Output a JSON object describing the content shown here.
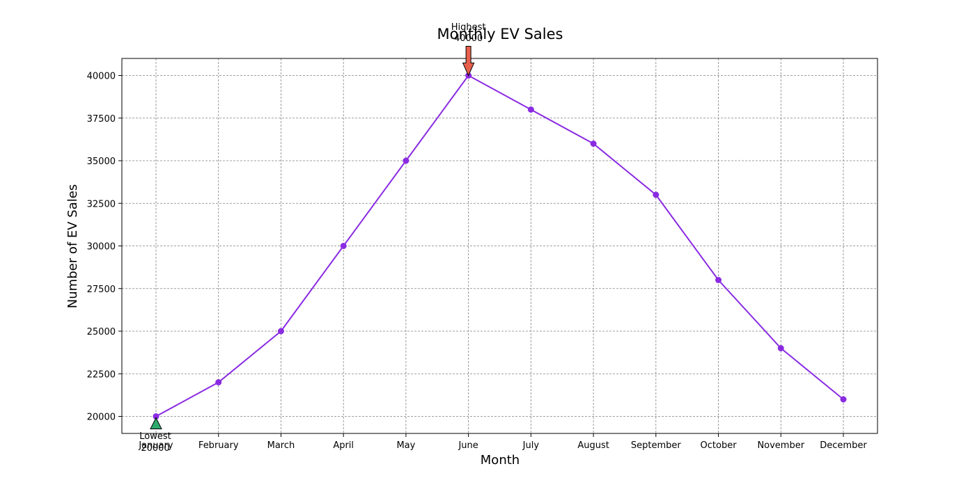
{
  "chart_data": {
    "type": "line",
    "title": "Monthly EV Sales",
    "xlabel": "Month",
    "ylabel": "Number of EV Sales",
    "categories": [
      "January",
      "February",
      "March",
      "April",
      "May",
      "June",
      "July",
      "August",
      "September",
      "October",
      "November",
      "December"
    ],
    "series": [
      {
        "values": [
          20000,
          22000,
          25000,
          30000,
          35000,
          40000,
          38000,
          36000,
          33000,
          28000,
          24000,
          21000
        ]
      }
    ],
    "ylim": [
      19000,
      41000
    ],
    "yticks": [
      20000,
      22500,
      25000,
      27500,
      30000,
      32500,
      35000,
      37500,
      40000
    ],
    "grid": true,
    "annotations": [
      {
        "kind": "highest",
        "label": "Highest",
        "value_text": "40000",
        "category": "June",
        "value": 40000
      },
      {
        "kind": "lowest",
        "label": "Lowest",
        "value_text": "20000",
        "category": "January",
        "value": 20000
      }
    ]
  },
  "colors": {
    "series": "#8a2be2",
    "highest_arrow": "#e8604c",
    "lowest_arrow": "#2eaa6e",
    "grid": "#808080"
  }
}
